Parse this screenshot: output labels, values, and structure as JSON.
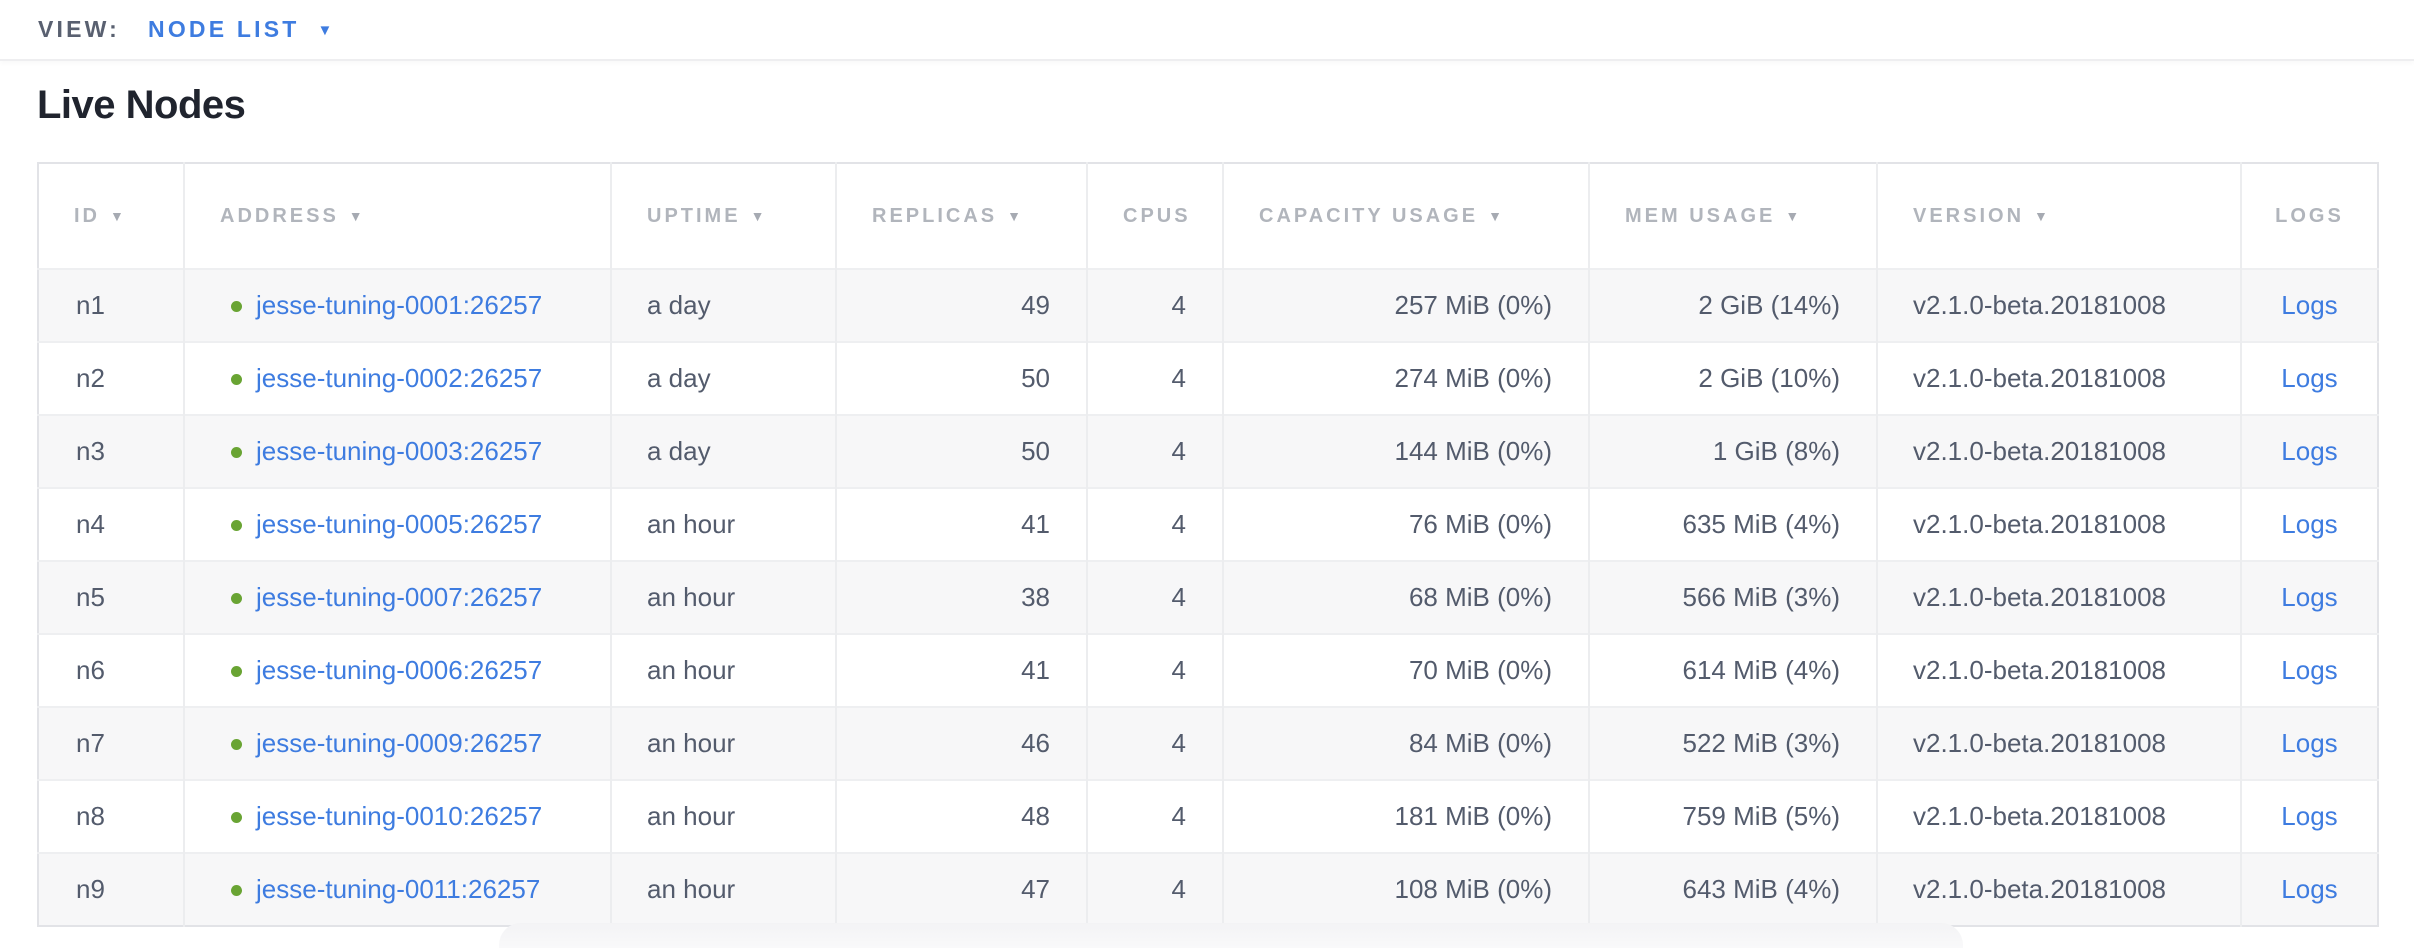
{
  "view_bar": {
    "label": "VIEW:",
    "selected": "NODE LIST"
  },
  "page": {
    "title": "Live Nodes"
  },
  "icons": {
    "caret_down": "▼",
    "sort_desc": "▼",
    "node_health_dot": "circle"
  },
  "colors": {
    "accent_blue": "#3e7ce0",
    "status_healthy": "#69a433",
    "header_text": "#b1b5bc",
    "body_text": "#535b6c",
    "title_text": "#20242e",
    "stripe": "#f7f7f8"
  },
  "table": {
    "columns": [
      {
        "key": "id",
        "label": "ID",
        "sortable": true,
        "align": "left",
        "header_align": "left"
      },
      {
        "key": "address",
        "label": "ADDRESS",
        "sortable": true,
        "align": "left",
        "header_align": "left"
      },
      {
        "key": "uptime",
        "label": "UPTIME",
        "sortable": true,
        "align": "left",
        "header_align": "left"
      },
      {
        "key": "replicas",
        "label": "REPLICAS",
        "sortable": true,
        "align": "right",
        "header_align": "left"
      },
      {
        "key": "cpus",
        "label": "CPUS",
        "sortable": false,
        "align": "right",
        "header_align": "left"
      },
      {
        "key": "capacity",
        "label": "CAPACITY USAGE",
        "sortable": true,
        "align": "right",
        "header_align": "left"
      },
      {
        "key": "mem",
        "label": "MEM USAGE",
        "sortable": true,
        "align": "right",
        "header_align": "left"
      },
      {
        "key": "version",
        "label": "VERSION",
        "sortable": true,
        "align": "left",
        "header_align": "left"
      },
      {
        "key": "logs",
        "label": "LOGS",
        "sortable": false,
        "align": "center",
        "header_align": "center"
      }
    ],
    "rows": [
      {
        "id": "n1",
        "status": "healthy",
        "address": "jesse-tuning-0001:26257",
        "uptime": "a day",
        "replicas": "49",
        "cpus": "4",
        "capacity": "257 MiB (0%)",
        "mem": "2 GiB (14%)",
        "version": "v2.1.0-beta.20181008",
        "logs": "Logs"
      },
      {
        "id": "n2",
        "status": "healthy",
        "address": "jesse-tuning-0002:26257",
        "uptime": "a day",
        "replicas": "50",
        "cpus": "4",
        "capacity": "274 MiB (0%)",
        "mem": "2 GiB (10%)",
        "version": "v2.1.0-beta.20181008",
        "logs": "Logs"
      },
      {
        "id": "n3",
        "status": "healthy",
        "address": "jesse-tuning-0003:26257",
        "uptime": "a day",
        "replicas": "50",
        "cpus": "4",
        "capacity": "144 MiB (0%)",
        "mem": "1 GiB (8%)",
        "version": "v2.1.0-beta.20181008",
        "logs": "Logs"
      },
      {
        "id": "n4",
        "status": "healthy",
        "address": "jesse-tuning-0005:26257",
        "uptime": "an hour",
        "replicas": "41",
        "cpus": "4",
        "capacity": "76 MiB (0%)",
        "mem": "635 MiB (4%)",
        "version": "v2.1.0-beta.20181008",
        "logs": "Logs"
      },
      {
        "id": "n5",
        "status": "healthy",
        "address": "jesse-tuning-0007:26257",
        "uptime": "an hour",
        "replicas": "38",
        "cpus": "4",
        "capacity": "68 MiB (0%)",
        "mem": "566 MiB (3%)",
        "version": "v2.1.0-beta.20181008",
        "logs": "Logs"
      },
      {
        "id": "n6",
        "status": "healthy",
        "address": "jesse-tuning-0006:26257",
        "uptime": "an hour",
        "replicas": "41",
        "cpus": "4",
        "capacity": "70 MiB (0%)",
        "mem": "614 MiB (4%)",
        "version": "v2.1.0-beta.20181008",
        "logs": "Logs"
      },
      {
        "id": "n7",
        "status": "healthy",
        "address": "jesse-tuning-0009:26257",
        "uptime": "an hour",
        "replicas": "46",
        "cpus": "4",
        "capacity": "84 MiB (0%)",
        "mem": "522 MiB (3%)",
        "version": "v2.1.0-beta.20181008",
        "logs": "Logs"
      },
      {
        "id": "n8",
        "status": "healthy",
        "address": "jesse-tuning-0010:26257",
        "uptime": "an hour",
        "replicas": "48",
        "cpus": "4",
        "capacity": "181 MiB (0%)",
        "mem": "759 MiB (5%)",
        "version": "v2.1.0-beta.20181008",
        "logs": "Logs"
      },
      {
        "id": "n9",
        "status": "healthy",
        "address": "jesse-tuning-0011:26257",
        "uptime": "an hour",
        "replicas": "47",
        "cpus": "4",
        "capacity": "108 MiB (0%)",
        "mem": "643 MiB (4%)",
        "version": "v2.1.0-beta.20181008",
        "logs": "Logs"
      }
    ]
  }
}
